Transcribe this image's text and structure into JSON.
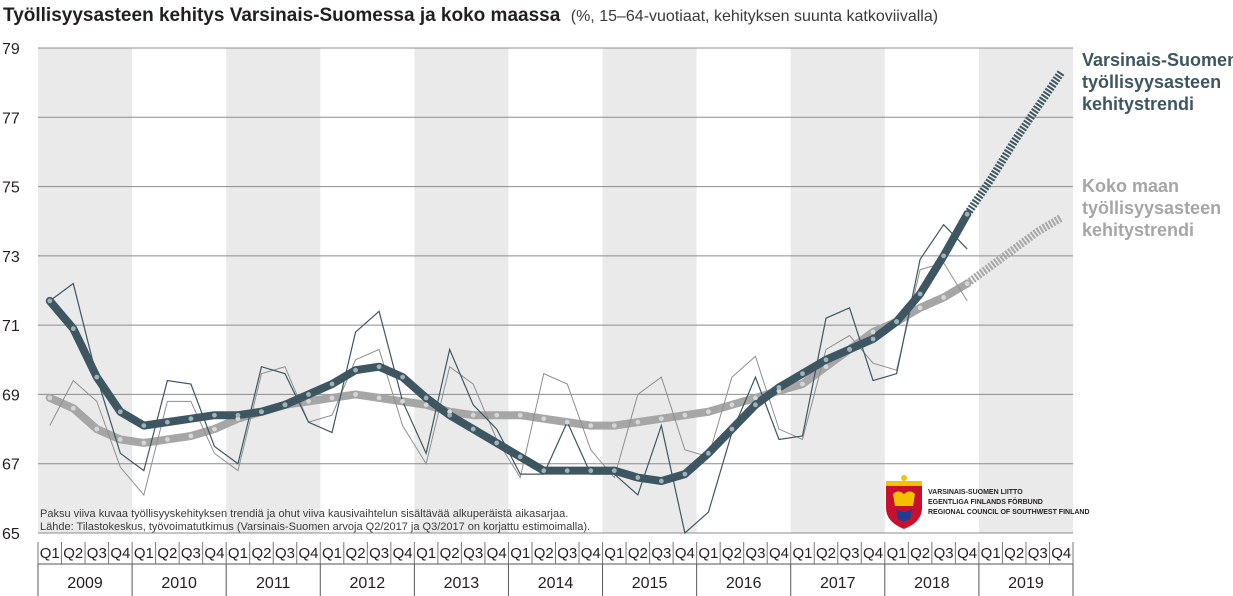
{
  "colors": {
    "regional": "#3d5661",
    "national": "#a6a6a6",
    "band": "#eaeaea",
    "grid": "#8c8c8c",
    "text": "#231f20"
  },
  "header": {
    "title": "Työllisyysasteen kehitys Varsinais-Suomessa ja koko maassa",
    "subtitle": "(%, 15–64-vuotiaat, kehityksen suunta katkoviivalla)"
  },
  "labels": {
    "regional_line1": "Varsinais-Suomen",
    "regional_line2": "työllisyysasteen",
    "regional_line3": "kehitystrendi",
    "national_line1": "Koko maan",
    "national_line2": "työllisyysasteen",
    "national_line3": "kehitystrendi"
  },
  "notes": {
    "line1": "Paksu viiva kuvaa työllisyyskehityksen trendiä ja ohut viiva kausivaihtelun sisältävää alkuperäistä aikasarjaa.",
    "line2": "Lähde: Tilastokeskus, työvoimatutkimus (Varsinais-Suomen arvoja Q2/2017 ja Q3/2017 on korjattu estimoimalla)."
  },
  "logo": {
    "icon": "coat-of-arms-icon",
    "line1": "VARSINAIS-SUOMEN LIITTO",
    "line2": "EGENTLIGA FINLANDS FÖRBUND",
    "line3": "REGIONAL COUNCIL OF SOUTHWEST FINLAND"
  },
  "chart_data": {
    "type": "line",
    "years": [
      "2009",
      "2010",
      "2011",
      "2012",
      "2013",
      "2014",
      "2015",
      "2016",
      "2017",
      "2018",
      "2019"
    ],
    "quarters": [
      "Q1",
      "Q2",
      "Q3",
      "Q4"
    ],
    "ylim": [
      65,
      79
    ],
    "yticks": [
      65,
      67,
      69,
      71,
      73,
      75,
      77,
      79
    ],
    "grid": true,
    "series": [
      {
        "name": "Varsinais-Suomen työllisyysasteen kehitystrendi",
        "style": "trend",
        "values": [
          71.7,
          70.9,
          69.5,
          68.5,
          68.1,
          68.2,
          68.3,
          68.4,
          68.4,
          68.5,
          68.7,
          69.0,
          69.3,
          69.7,
          69.8,
          69.5,
          68.9,
          68.4,
          68.0,
          67.6,
          67.2,
          66.8,
          66.8,
          66.8,
          66.8,
          66.6,
          66.5,
          66.7,
          67.3,
          68.0,
          68.7,
          69.2,
          69.6,
          70.0,
          70.3,
          70.6,
          71.1,
          71.9,
          73.0,
          74.2
        ],
        "forecast": [
          74.2,
          75.2,
          76.3,
          77.3,
          78.3
        ]
      },
      {
        "name": "Koko maan työllisyysasteen kehitystrendi",
        "style": "trend",
        "values": [
          68.9,
          68.6,
          68.0,
          67.7,
          67.6,
          67.7,
          67.8,
          68.0,
          68.3,
          68.5,
          68.7,
          68.8,
          68.9,
          69.0,
          68.9,
          68.8,
          68.7,
          68.5,
          68.4,
          68.4,
          68.4,
          68.3,
          68.2,
          68.1,
          68.1,
          68.2,
          68.3,
          68.4,
          68.5,
          68.7,
          68.9,
          69.1,
          69.3,
          69.8,
          70.3,
          70.8,
          71.1,
          71.5,
          71.8,
          72.2
        ],
        "forecast": [
          72.2,
          72.7,
          73.2,
          73.7,
          74.1
        ]
      },
      {
        "name": "Varsinais-Suomi alkuperäinen",
        "style": "raw",
        "values": [
          71.7,
          72.2,
          69.5,
          67.3,
          66.8,
          69.4,
          69.3,
          67.5,
          67.0,
          69.8,
          69.6,
          68.2,
          67.9,
          70.8,
          71.4,
          68.8,
          67.3,
          70.3,
          68.7,
          68.0,
          66.7,
          66.7,
          68.2,
          66.7,
          66.7,
          66.1,
          68.1,
          65.0,
          65.6,
          67.9,
          69.5,
          67.7,
          67.8,
          71.2,
          71.5,
          69.4,
          69.6,
          72.9,
          73.9,
          73.2
        ]
      },
      {
        "name": "Koko maa alkuperäinen",
        "style": "raw",
        "values": [
          68.1,
          69.4,
          68.8,
          66.9,
          66.1,
          68.8,
          68.8,
          67.3,
          66.8,
          69.6,
          69.8,
          68.2,
          68.4,
          70.0,
          70.3,
          68.1,
          67.0,
          69.8,
          69.3,
          67.7,
          66.6,
          69.6,
          69.3,
          67.4,
          66.6,
          69.0,
          69.5,
          67.4,
          67.2,
          69.5,
          70.1,
          68.0,
          67.7,
          70.3,
          70.7,
          69.9,
          69.7,
          72.6,
          72.8,
          71.7
        ]
      }
    ]
  }
}
